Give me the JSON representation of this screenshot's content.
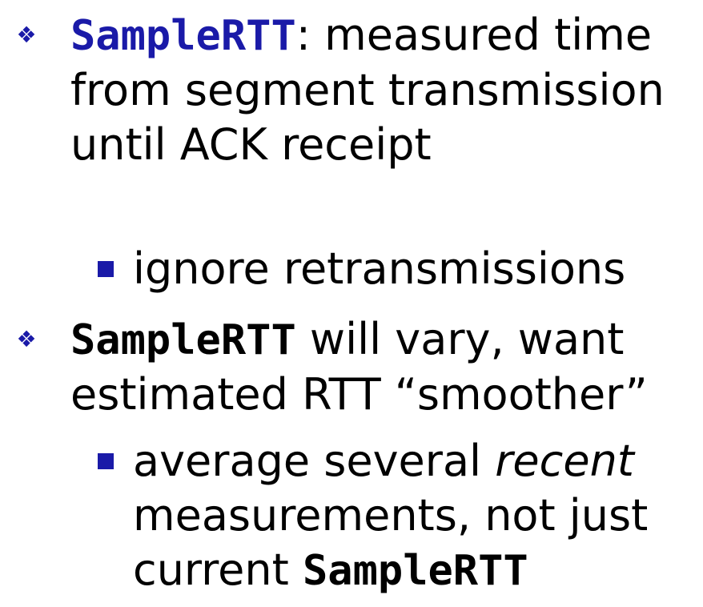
{
  "bullets": [
    {
      "code": "SampleRTT",
      "text_after_code": ": measured time from segment transmission until ACK receipt",
      "sub": {
        "text": "ignore retransmissions"
      }
    },
    {
      "code": "SampleRTT",
      "text_after_code": " will vary, want estimated RTT “smoother”",
      "sub": {
        "text_before_em": "average several ",
        "em": "recent",
        "text_after_em": " measurements, not just current ",
        "code": "SampleRTT"
      }
    }
  ],
  "icons": {
    "level1": "diamond-cluster-icon",
    "level2": "square-bullet-icon"
  },
  "colors": {
    "accent": "#1a1aa8",
    "text": "#000000",
    "background": "#ffffff"
  }
}
